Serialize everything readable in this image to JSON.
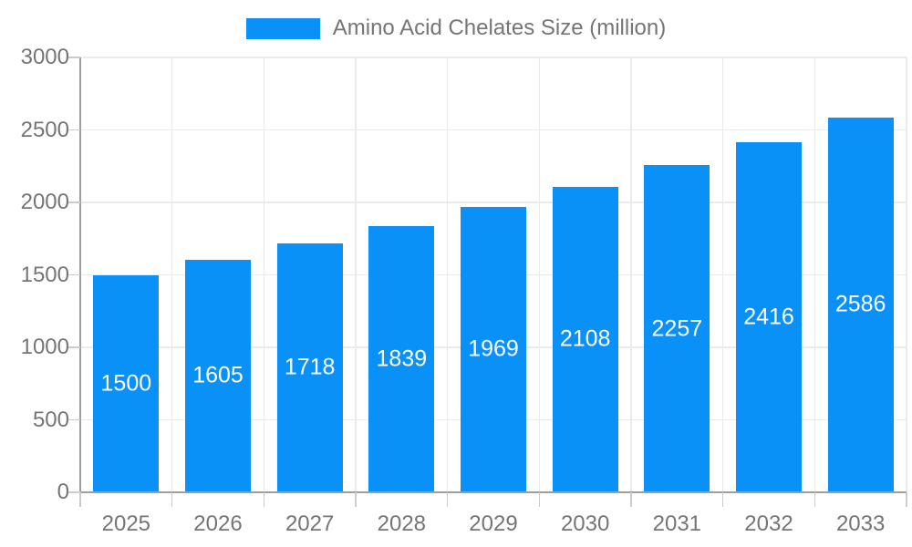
{
  "legend": {
    "label": "Amino Acid Chelates Size (million)",
    "swatch_color": "#0A91F8"
  },
  "chart_data": {
    "type": "bar",
    "title": "Amino Acid Chelates Size (million)",
    "categories": [
      "2025",
      "2026",
      "2027",
      "2028",
      "2029",
      "2030",
      "2031",
      "2032",
      "2033"
    ],
    "values": [
      1500,
      1605,
      1718,
      1839,
      1969,
      2108,
      2257,
      2416,
      2586
    ],
    "xlabel": "",
    "ylabel": "",
    "ylim": [
      0,
      3000
    ],
    "yticks": [
      0,
      500,
      1000,
      1500,
      2000,
      2500,
      3000
    ],
    "grid": true,
    "legend_position": "top",
    "bar_color": "#0A91F8",
    "value_label_color": "#FFFFFF"
  },
  "style": {
    "background": "#FFFFFF",
    "axis_text_color": "#757575",
    "grid_color": "#EBEBEB",
    "axis_line_color": "#9E9E9E",
    "tick_color": "#CCCCCC"
  }
}
